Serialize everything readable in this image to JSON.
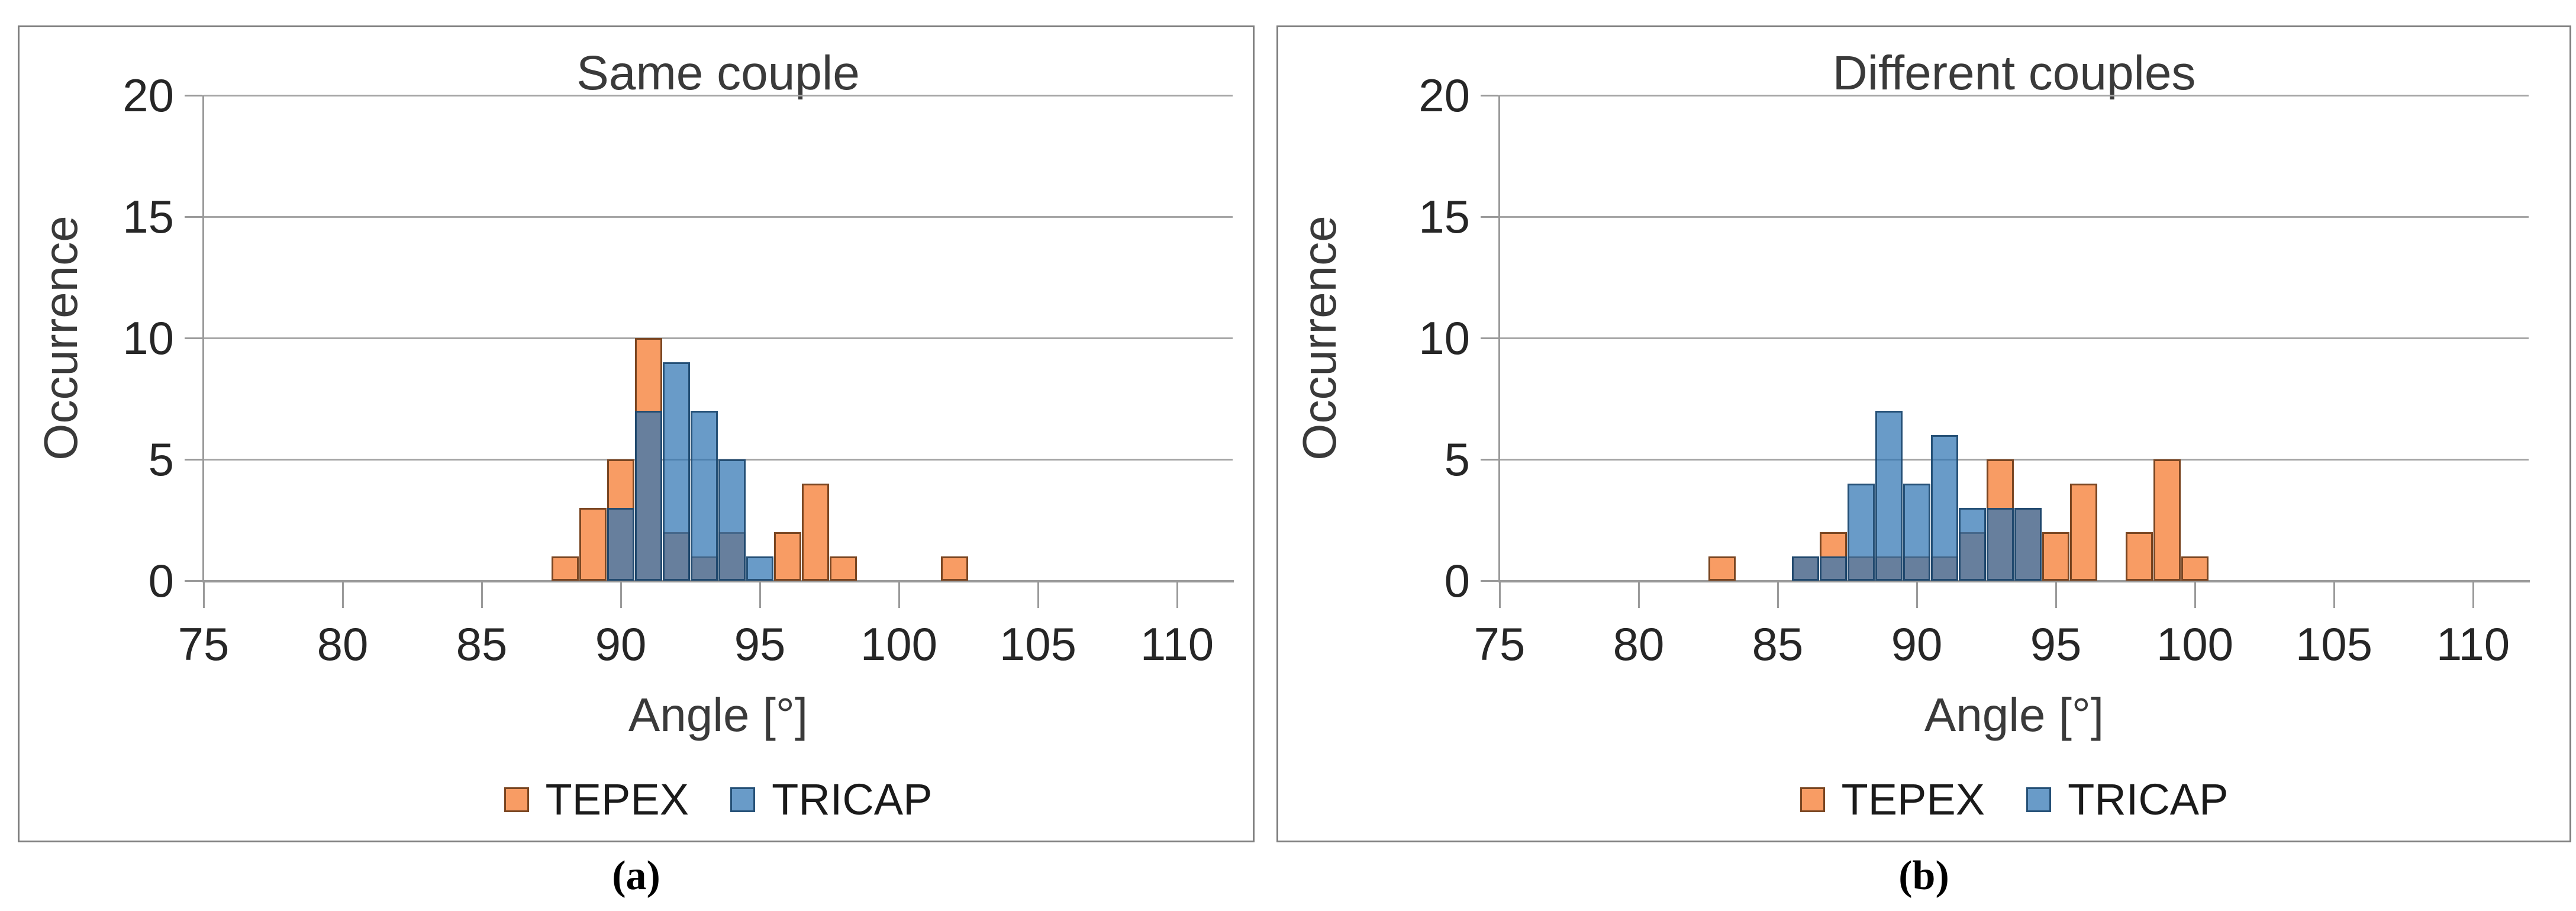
{
  "figure": {
    "captions": {
      "a": "(a)",
      "b": "(b)"
    }
  },
  "style": {
    "panel_border_color": "#7F7F7F",
    "grid_color": "#A6A6A6",
    "axis_color": "#9A9A9A",
    "tick_text_color": "#262626",
    "title_text_color": "#3A3A3A",
    "background": "#FFFFFF",
    "overlap_color_appearance": "#67809D"
  },
  "chart_data": [
    {
      "type": "bar",
      "subtype": "overlapping-histogram",
      "title": "Same couple",
      "xlabel": "Angle [°]",
      "ylabel": "Occurrence",
      "xlim": [
        75,
        112
      ],
      "ylim": [
        0,
        20
      ],
      "xticks": [
        75,
        80,
        85,
        90,
        95,
        100,
        105,
        110
      ],
      "yticks": [
        0,
        5,
        10,
        15,
        20
      ],
      "bin_width": 1,
      "grid": "horizontal",
      "legend_position": "bottom",
      "series": [
        {
          "name": "TEPEX",
          "fill": "#F89C64",
          "fill_alpha": 1.0,
          "edge": "#7A4622",
          "edge_alpha": 1.0,
          "points": [
            {
              "angle": 88,
              "occurrence": 1
            },
            {
              "angle": 89,
              "occurrence": 3
            },
            {
              "angle": 90,
              "occurrence": 5
            },
            {
              "angle": 91,
              "occurrence": 10
            },
            {
              "angle": 92,
              "occurrence": 2
            },
            {
              "angle": 93,
              "occurrence": 1
            },
            {
              "angle": 94,
              "occurrence": 2
            },
            {
              "angle": 96,
              "occurrence": 2
            },
            {
              "angle": 97,
              "occurrence": 4
            },
            {
              "angle": 98,
              "occurrence": 1
            },
            {
              "angle": 102,
              "occurrence": 1
            }
          ]
        },
        {
          "name": "TRICAP",
          "fill": "#2F75B3",
          "fill_alpha": 0.72,
          "edge": "#1B4469",
          "edge_alpha": 0.85,
          "points": [
            {
              "angle": 90,
              "occurrence": 3
            },
            {
              "angle": 91,
              "occurrence": 7
            },
            {
              "angle": 92,
              "occurrence": 9
            },
            {
              "angle": 93,
              "occurrence": 7
            },
            {
              "angle": 94,
              "occurrence": 5
            },
            {
              "angle": 95,
              "occurrence": 1
            }
          ]
        }
      ]
    },
    {
      "type": "bar",
      "subtype": "overlapping-histogram",
      "title": "Different couples",
      "xlabel": "Angle [°]",
      "ylabel": "Occurrence",
      "xlim": [
        75,
        112
      ],
      "ylim": [
        0,
        20
      ],
      "xticks": [
        75,
        80,
        85,
        90,
        95,
        100,
        105,
        110
      ],
      "yticks": [
        0,
        5,
        10,
        15,
        20
      ],
      "bin_width": 1,
      "grid": "horizontal",
      "legend_position": "bottom",
      "series": [
        {
          "name": "TEPEX",
          "fill": "#F89C64",
          "fill_alpha": 1.0,
          "edge": "#7A4622",
          "edge_alpha": 1.0,
          "points": [
            {
              "angle": 83,
              "occurrence": 1
            },
            {
              "angle": 86,
              "occurrence": 1
            },
            {
              "angle": 87,
              "occurrence": 2
            },
            {
              "angle": 88,
              "occurrence": 1
            },
            {
              "angle": 89,
              "occurrence": 1
            },
            {
              "angle": 90,
              "occurrence": 1
            },
            {
              "angle": 91,
              "occurrence": 1
            },
            {
              "angle": 92,
              "occurrence": 2
            },
            {
              "angle": 93,
              "occurrence": 5
            },
            {
              "angle": 94,
              "occurrence": 3
            },
            {
              "angle": 95,
              "occurrence": 2
            },
            {
              "angle": 96,
              "occurrence": 4
            },
            {
              "angle": 98,
              "occurrence": 2
            },
            {
              "angle": 99,
              "occurrence": 5
            },
            {
              "angle": 100,
              "occurrence": 1
            }
          ]
        },
        {
          "name": "TRICAP",
          "fill": "#2F75B3",
          "fill_alpha": 0.72,
          "edge": "#1B4469",
          "edge_alpha": 0.85,
          "points": [
            {
              "angle": 86,
              "occurrence": 1
            },
            {
              "angle": 87,
              "occurrence": 1
            },
            {
              "angle": 88,
              "occurrence": 4
            },
            {
              "angle": 89,
              "occurrence": 7
            },
            {
              "angle": 90,
              "occurrence": 4
            },
            {
              "angle": 91,
              "occurrence": 6
            },
            {
              "angle": 92,
              "occurrence": 3
            },
            {
              "angle": 93,
              "occurrence": 3
            },
            {
              "angle": 94,
              "occurrence": 3
            }
          ]
        }
      ]
    }
  ]
}
